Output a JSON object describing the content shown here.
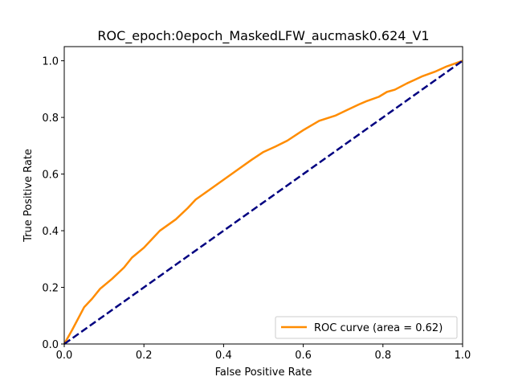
{
  "chart_data": {
    "type": "line",
    "title": "ROC_epoch:0epoch_MaskedLFW_aucmask0.624_V1",
    "xlabel": "False Positive Rate",
    "ylabel": "True Positive Rate",
    "xlim": [
      0.0,
      1.0
    ],
    "ylim": [
      0.0,
      1.05
    ],
    "xticks": [
      "0.0",
      "0.2",
      "0.4",
      "0.6",
      "0.8",
      "1.0"
    ],
    "yticks": [
      "0.0",
      "0.2",
      "0.4",
      "0.6",
      "0.8",
      "1.0"
    ],
    "grid": false,
    "legend_location": "lower right",
    "series": [
      {
        "name": "ROC curve (area = 0.62)",
        "color": "#ff8c00",
        "linestyle": "solid",
        "x": [
          0.0,
          0.02,
          0.05,
          0.07,
          0.09,
          0.12,
          0.15,
          0.17,
          0.2,
          0.22,
          0.24,
          0.28,
          0.31,
          0.33,
          0.36,
          0.4,
          0.44,
          0.47,
          0.5,
          0.53,
          0.56,
          0.6,
          0.64,
          0.68,
          0.71,
          0.74,
          0.76,
          0.79,
          0.81,
          0.83,
          0.86,
          0.88,
          0.9,
          0.93,
          0.96,
          0.98,
          1.0
        ],
        "y": [
          0.0,
          0.05,
          0.13,
          0.16,
          0.195,
          0.23,
          0.27,
          0.305,
          0.34,
          0.37,
          0.4,
          0.44,
          0.48,
          0.51,
          0.54,
          0.58,
          0.62,
          0.65,
          0.678,
          0.697,
          0.718,
          0.755,
          0.788,
          0.806,
          0.826,
          0.846,
          0.858,
          0.873,
          0.89,
          0.898,
          0.92,
          0.933,
          0.946,
          0.961,
          0.98,
          0.99,
          1.0
        ]
      },
      {
        "name": "",
        "color": "#000080",
        "linestyle": "dashed",
        "x": [
          0.0,
          1.0
        ],
        "y": [
          0.0,
          1.0
        ]
      }
    ]
  }
}
